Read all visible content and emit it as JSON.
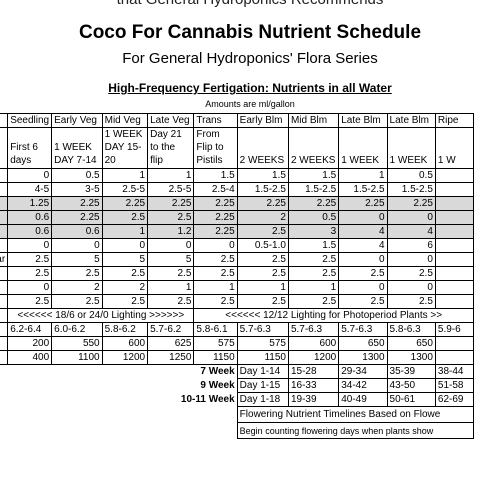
{
  "top_cut_text": "that General Hydroponics Recommends",
  "title": "Coco For Cannabis Nutrient Schedule",
  "subtitle": "For General Hydroponics' Flora Series",
  "section_title": "High-Frequency Fertigation: Nutrients in all Water",
  "units_note": "Amounts are ml/gallon",
  "header_row": [
    "",
    "Seedling",
    "Early Veg",
    "Mid Veg",
    "Late Veg",
    "Trans",
    "Early Blm",
    "Mid Blm",
    "Late Blm",
    "Late Blm",
    "Ripe"
  ],
  "duration_row": [
    [],
    [
      "",
      "First 6",
      "days"
    ],
    [
      "",
      "1 WEEK",
      "DAY 7-14"
    ],
    [
      "1 WEEK",
      "DAY 15-",
      "20"
    ],
    [
      "Day 21",
      "to the",
      "flip"
    ],
    [
      "From",
      "Flip to",
      "Pistils"
    ],
    [
      "",
      "",
      "2 WEEKS"
    ],
    [
      "",
      "",
      "2 WEEKS"
    ],
    [
      "",
      "",
      "1 WEEK"
    ],
    [
      "",
      "",
      "1 WEEK"
    ],
    [
      "",
      "",
      "1 W"
    ]
  ],
  "rows": [
    {
      "label": "",
      "shade": false,
      "cells": [
        "0",
        "0.5",
        "1",
        "1",
        "1.5",
        "1.5",
        "1.5",
        "1",
        "0.5",
        ""
      ]
    },
    {
      "label": "",
      "shade": false,
      "cells": [
        "4-5",
        "3-5",
        "2.5-5",
        "2.5-5",
        "2.5-4",
        "1.5-2.5",
        "1.5-2.5",
        "1.5-2.5",
        "1.5-2.5",
        ""
      ]
    },
    {
      "label": "",
      "shade": true,
      "cells": [
        "1.25",
        "2.25",
        "2.25",
        "2.25",
        "2.25",
        "2.25",
        "2.25",
        "2.25",
        "2.25",
        ""
      ]
    },
    {
      "label": "",
      "shade": true,
      "cells": [
        "0.6",
        "2.25",
        "2.5",
        "2.5",
        "2.25",
        "2",
        "0.5",
        "0",
        "0",
        ""
      ]
    },
    {
      "label": "",
      "shade": true,
      "cells": [
        "0.6",
        "0.6",
        "1",
        "1.2",
        "2.25",
        "2.5",
        "3",
        "4",
        "4",
        ""
      ]
    },
    {
      "label": "",
      "shade": false,
      "cells": [
        "0",
        "0",
        "0",
        "0",
        "0",
        "0.5-1.0",
        "1.5",
        "4",
        "6",
        ""
      ]
    },
    {
      "label": "ctar",
      "shade": false,
      "cells": [
        "2.5",
        "5",
        "5",
        "5",
        "2.5",
        "2.5",
        "2.5",
        "0",
        "0",
        ""
      ]
    },
    {
      "label": "",
      "shade": false,
      "cells": [
        "2.5",
        "2.5",
        "2.5",
        "2.5",
        "2.5",
        "2.5",
        "2.5",
        "2.5",
        "2.5",
        ""
      ]
    },
    {
      "label": "",
      "shade": false,
      "cells": [
        "0",
        "2",
        "2",
        "1",
        "1",
        "1",
        "1",
        "0",
        "0",
        ""
      ]
    },
    {
      "label": "",
      "shade": false,
      "cells": [
        "2.5",
        "2.5",
        "2.5",
        "2.5",
        "2.5",
        "2.5",
        "2.5",
        "2.5",
        "2.5",
        ""
      ]
    }
  ],
  "lighting_veg": "<<<<<< 18/6 or 24/0 Lighting >>>>>>",
  "lighting_flower": "<<<<<< 12/12 Lighting for Photoperiod Plants >>",
  "ph_row": [
    "6.2-6.4",
    "6.0-6.2",
    "5.8-6.2",
    "5.7-6.2",
    "5.8-6.1",
    "5.7-6.3",
    "5.7-6.3",
    "5.7-6.3",
    "5.8-6.3",
    "5.9-6"
  ],
  "ppm_low_row": [
    "200",
    "550",
    "600",
    "625",
    "575",
    "575",
    "600",
    "650",
    "650",
    ""
  ],
  "ppm_high_row": [
    "400",
    "1100",
    "1200",
    "1250",
    "1150",
    "1150",
    "1200",
    "1300",
    "1300",
    ""
  ],
  "weeks_rows": [
    {
      "label": "7 Week",
      "cells": [
        "Day 1-14",
        "15-28",
        "29-34",
        "35-39",
        "38-44"
      ]
    },
    {
      "label": "9 Week",
      "cells": [
        "Day 1-15",
        "16-33",
        "34-42",
        "43-50",
        "51-58"
      ]
    },
    {
      "label": "10-11 Week",
      "cells": [
        "Day 1-18",
        "19-39",
        "40-49",
        "50-61",
        "62-69"
      ]
    }
  ],
  "note_line1": "Flowering Nutrient Timelines Based on Flowe",
  "note_line2": "Begin counting flowering days when plants show"
}
